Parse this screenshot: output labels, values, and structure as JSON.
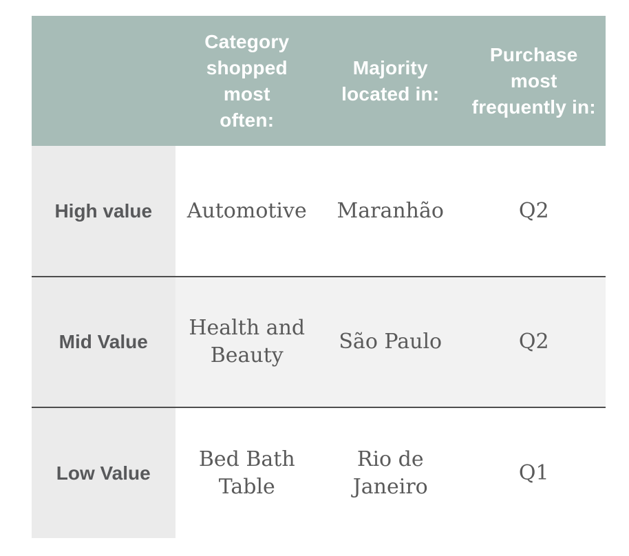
{
  "chart_data": {
    "type": "table",
    "title": "",
    "columns": [
      "",
      "Category shopped most often:",
      "Majority located in:",
      "Purchase most frequently in:"
    ],
    "rows": [
      [
        "High value",
        "Automotive",
        "Maranhão",
        "Q2"
      ],
      [
        "Mid Value",
        "Health and Beauty",
        "São Paulo",
        "Q2"
      ],
      [
        "Low Value",
        "Bed Bath Table",
        "Rio de Janeiro",
        "Q1"
      ]
    ],
    "layout_hints": {
      "header_row_shaded": true,
      "label_column_shaded": true,
      "striped_rows": [
        2
      ],
      "divider_lines_between_body_rows": true
    }
  },
  "table": {
    "columns": [
      {
        "label": ""
      },
      {
        "label": "Category\nshopped most\noften:"
      },
      {
        "label": "Majority\nlocated in:"
      },
      {
        "label": "Purchase\nmost\nfrequently in:"
      }
    ],
    "rows": [
      {
        "label": "High value",
        "category": "Automotive",
        "location": "Maranhão",
        "quarter": "Q2"
      },
      {
        "label": "Mid Value",
        "category": "Health and\nBeauty",
        "location": "São Paulo",
        "quarter": "Q2"
      },
      {
        "label": "Low Value",
        "category": "Bed Bath\nTable",
        "location": "Rio de\nJaneiro",
        "quarter": "Q1"
      }
    ],
    "colors": {
      "header_bg": "#a7bcb7",
      "row_label_bg": "#ebebeb",
      "stripe_bg": "#f2f2f2",
      "divider": "#4d4d4d",
      "header_text": "#ffffff",
      "label_text": "#58595b",
      "body_text": "#5a5a5a"
    }
  }
}
